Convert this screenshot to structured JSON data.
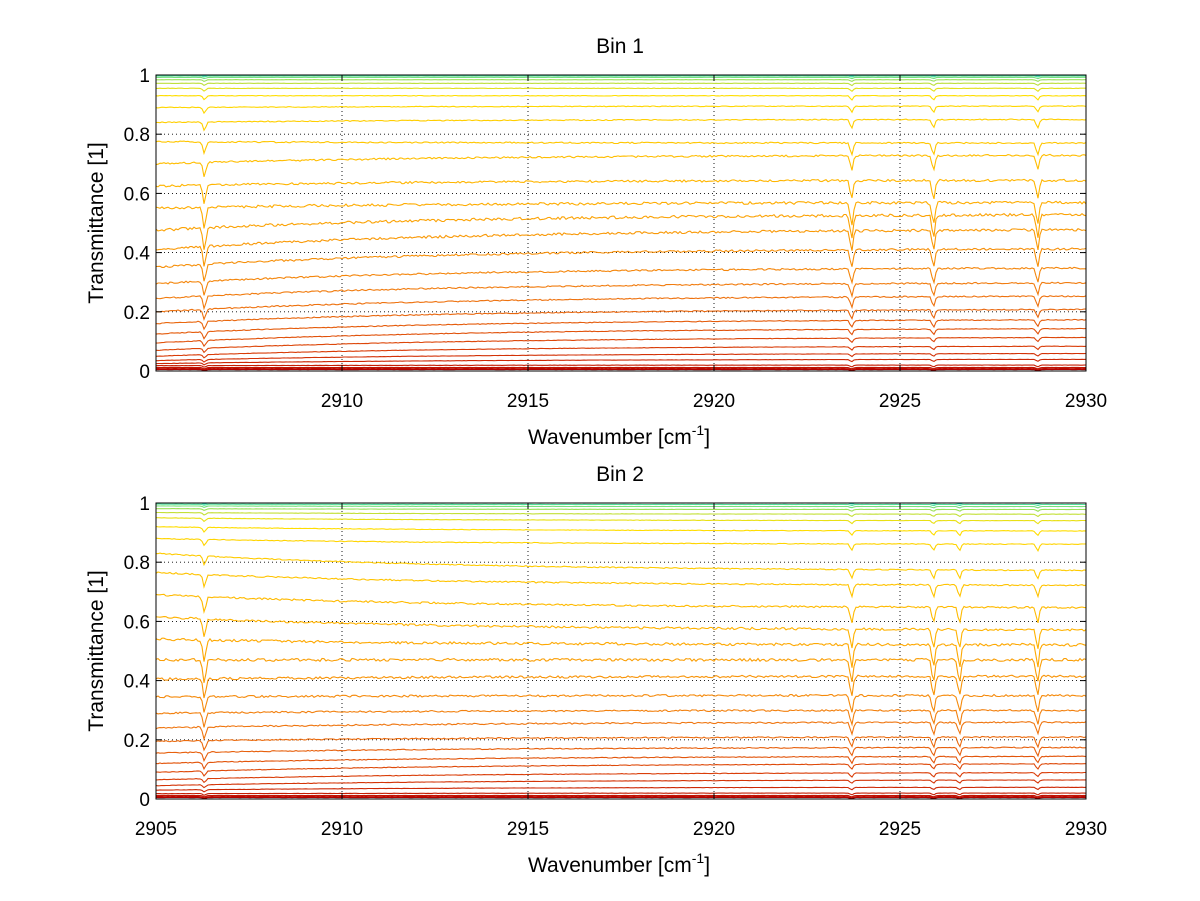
{
  "chart_data": [
    {
      "type": "line",
      "title": "Bin 1",
      "xlabel": "Wavenumber [cm",
      "xlabel_sup": "-1",
      "xlabel_suffix": "]",
      "ylabel": "Transmittance [1]",
      "xlim": [
        2905,
        2930
      ],
      "ylim": [
        0,
        1
      ],
      "grid": true,
      "xticks": [
        2910,
        2915,
        2920,
        2925,
        2930
      ],
      "xtick_labels": [
        "2910",
        "2915",
        "2920",
        "2925",
        "2930"
      ],
      "yticks": [
        0,
        0.2,
        0.4,
        0.6,
        0.8,
        1
      ],
      "ytick_labels": [
        "0",
        "0.2",
        "0.4",
        "0.6",
        "0.8",
        "1"
      ],
      "absorption_lines_cm-1": [
        2906.3,
        2923.7,
        2925.9,
        2928.7
      ],
      "series_start_levels": [
        0.005,
        0.008,
        0.012,
        0.018,
        0.025,
        0.035,
        0.05,
        0.07,
        0.095,
        0.125,
        0.16,
        0.2,
        0.245,
        0.295,
        0.35,
        0.41,
        0.475,
        0.55,
        0.625,
        0.7,
        0.775,
        0.84,
        0.89,
        0.93,
        0.955,
        0.972,
        0.984,
        0.992,
        0.997,
        1.0
      ],
      "series_end_levels": [
        0.005,
        0.008,
        0.012,
        0.02,
        0.04,
        0.06,
        0.085,
        0.115,
        0.145,
        0.175,
        0.21,
        0.255,
        0.3,
        0.35,
        0.415,
        0.48,
        0.53,
        0.57,
        0.645,
        0.73,
        0.77,
        0.85,
        0.895,
        0.93,
        0.955,
        0.972,
        0.984,
        0.992,
        0.997,
        1.0
      ],
      "color_map": [
        "#b20000",
        "#d83a08",
        "#f07810",
        "#ffb000",
        "#ffe000",
        "#2ee0c0"
      ]
    },
    {
      "type": "line",
      "title": "Bin 2",
      "xlabel": "Wavenumber [cm",
      "xlabel_sup": "-1",
      "xlabel_suffix": "]",
      "ylabel": "Transmittance [1]",
      "xlim": [
        2905,
        2930
      ],
      "ylim": [
        0,
        1
      ],
      "grid": true,
      "xticks": [
        2905,
        2910,
        2915,
        2920,
        2925,
        2930
      ],
      "xtick_labels": [
        "2905",
        "2910",
        "2915",
        "2920",
        "2925",
        "2930"
      ],
      "yticks": [
        0,
        0.2,
        0.4,
        0.6,
        0.8,
        1
      ],
      "ytick_labels": [
        "0",
        "0.2",
        "0.4",
        "0.6",
        "0.8",
        "1"
      ],
      "absorption_lines_cm-1": [
        2906.3,
        2923.7,
        2925.9,
        2926.6,
        2928.7
      ],
      "series_start_levels": [
        0.005,
        0.008,
        0.012,
        0.018,
        0.03,
        0.045,
        0.065,
        0.09,
        0.12,
        0.155,
        0.195,
        0.24,
        0.29,
        0.345,
        0.405,
        0.47,
        0.54,
        0.615,
        0.69,
        0.765,
        0.83,
        0.88,
        0.92,
        0.95,
        0.968,
        0.981,
        0.99,
        0.996,
        1.0
      ],
      "series_end_levels": [
        0.005,
        0.008,
        0.012,
        0.02,
        0.04,
        0.065,
        0.09,
        0.12,
        0.145,
        0.175,
        0.21,
        0.26,
        0.3,
        0.35,
        0.415,
        0.47,
        0.52,
        0.57,
        0.645,
        0.72,
        0.77,
        0.86,
        0.905,
        0.94,
        0.962,
        0.978,
        0.988,
        0.995,
        1.0
      ],
      "color_map": [
        "#b20000",
        "#d83a08",
        "#f07810",
        "#ffb000",
        "#ffe000",
        "#2ee0c0"
      ]
    }
  ]
}
